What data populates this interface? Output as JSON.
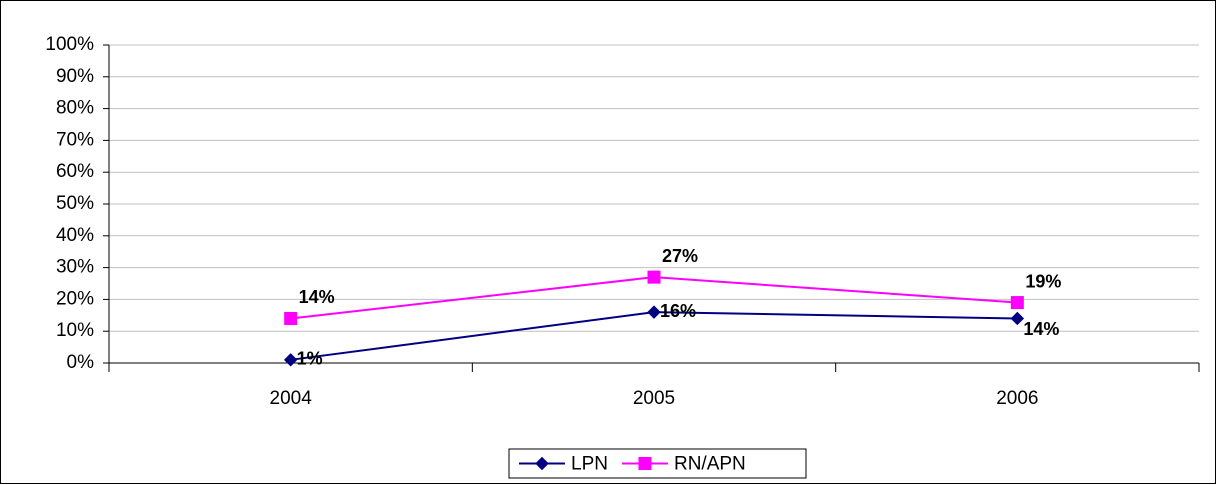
{
  "chart_data": {
    "type": "line",
    "categories": [
      "2004",
      "2005",
      "2006"
    ],
    "series": [
      {
        "name": "LPN",
        "color": "#000080",
        "marker": "diamond",
        "values": [
          1,
          16,
          14
        ],
        "value_labels": [
          "1%",
          "16%",
          "14%"
        ]
      },
      {
        "name": "RN/APN",
        "color": "#ff00ff",
        "marker": "square",
        "values": [
          14,
          27,
          19
        ],
        "value_labels": [
          "14%",
          "27%",
          "19%"
        ]
      }
    ],
    "ylim": [
      0,
      100
    ],
    "yticks": [
      {
        "value": 0,
        "label": "0%"
      },
      {
        "value": 10,
        "label": "10%"
      },
      {
        "value": 20,
        "label": "20%"
      },
      {
        "value": 30,
        "label": "30%"
      },
      {
        "value": 40,
        "label": "40%"
      },
      {
        "value": 50,
        "label": "50%"
      },
      {
        "value": 60,
        "label": "60%"
      },
      {
        "value": 70,
        "label": "70%"
      },
      {
        "value": 80,
        "label": "80%"
      },
      {
        "value": 90,
        "label": "90%"
      },
      {
        "value": 100,
        "label": "100%"
      }
    ],
    "grid": true,
    "legend": "bottom"
  }
}
